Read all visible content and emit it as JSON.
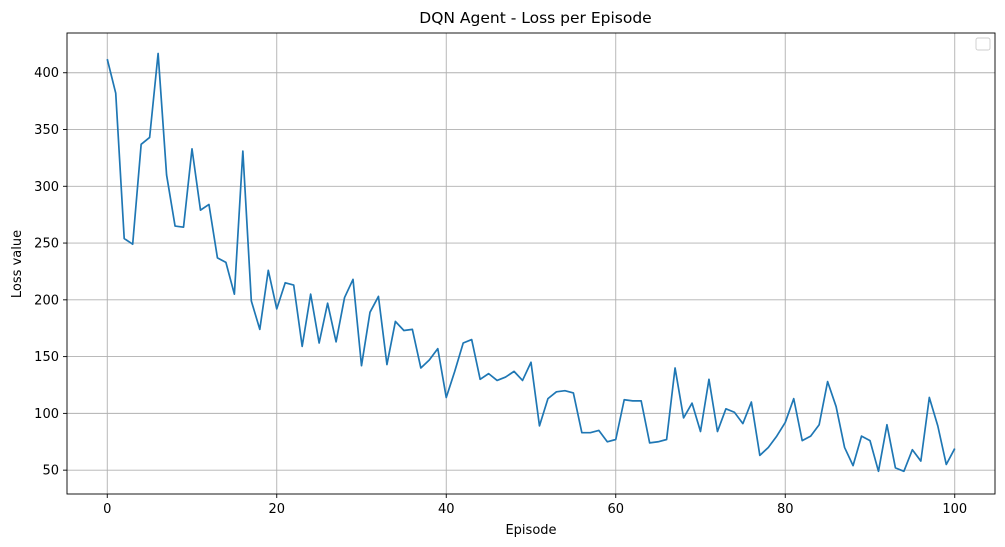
{
  "chart_data": {
    "type": "line",
    "title": "DQN Agent - Loss per Episode",
    "xlabel": "Episode",
    "ylabel": "Loss value",
    "xlim": [
      -4.75,
      104.75
    ],
    "ylim": [
      29,
      435
    ],
    "xticks": [
      0,
      20,
      40,
      60,
      80,
      100
    ],
    "yticks": [
      50,
      100,
      150,
      200,
      250,
      300,
      350,
      400
    ],
    "grid": true,
    "legend": "top-right (empty)",
    "line_color": "#1f77b4",
    "series": [
      {
        "x": [
          0,
          1,
          2,
          3,
          4,
          5,
          6,
          7,
          8,
          9,
          10,
          11,
          12,
          13,
          14,
          15,
          16,
          17,
          18,
          19,
          20,
          21,
          22,
          23,
          24,
          25,
          26,
          27,
          28,
          29,
          30,
          31,
          32,
          33,
          34,
          35,
          36,
          37,
          38,
          39,
          40,
          41,
          42,
          43,
          44,
          45,
          46,
          47,
          48,
          49,
          50,
          51,
          52,
          53,
          54,
          55,
          56,
          57,
          58,
          59,
          60,
          61,
          62,
          63,
          64,
          65,
          66,
          67,
          68,
          69,
          70,
          71,
          72,
          73,
          74,
          75,
          76,
          77,
          78,
          79,
          80,
          81,
          82,
          83,
          84,
          85,
          86,
          87,
          88,
          89,
          90,
          91,
          92,
          93,
          94,
          95,
          96,
          97,
          98,
          99,
          100
        ],
        "values": [
          412,
          382,
          254,
          249,
          337,
          343,
          417,
          310,
          265,
          264,
          333,
          279,
          284,
          237,
          233,
          205,
          331,
          199,
          174,
          226,
          192,
          215,
          213,
          159,
          205,
          162,
          197,
          163,
          202,
          218,
          142,
          189,
          203,
          143,
          181,
          173,
          174,
          140,
          147,
          157,
          114,
          137,
          162,
          165,
          130,
          135,
          129,
          132,
          137,
          129,
          145,
          89,
          113,
          119,
          120,
          118,
          83,
          83,
          85,
          75,
          77,
          112,
          111,
          111,
          74,
          75,
          77,
          140,
          96,
          109,
          84,
          130,
          84,
          104,
          101,
          91,
          110,
          63,
          70,
          80,
          92,
          113,
          76,
          80,
          90,
          128,
          106,
          70,
          54,
          80,
          76,
          49,
          90,
          52,
          49,
          68,
          58,
          114,
          89,
          55,
          69
        ]
      }
    ]
  }
}
